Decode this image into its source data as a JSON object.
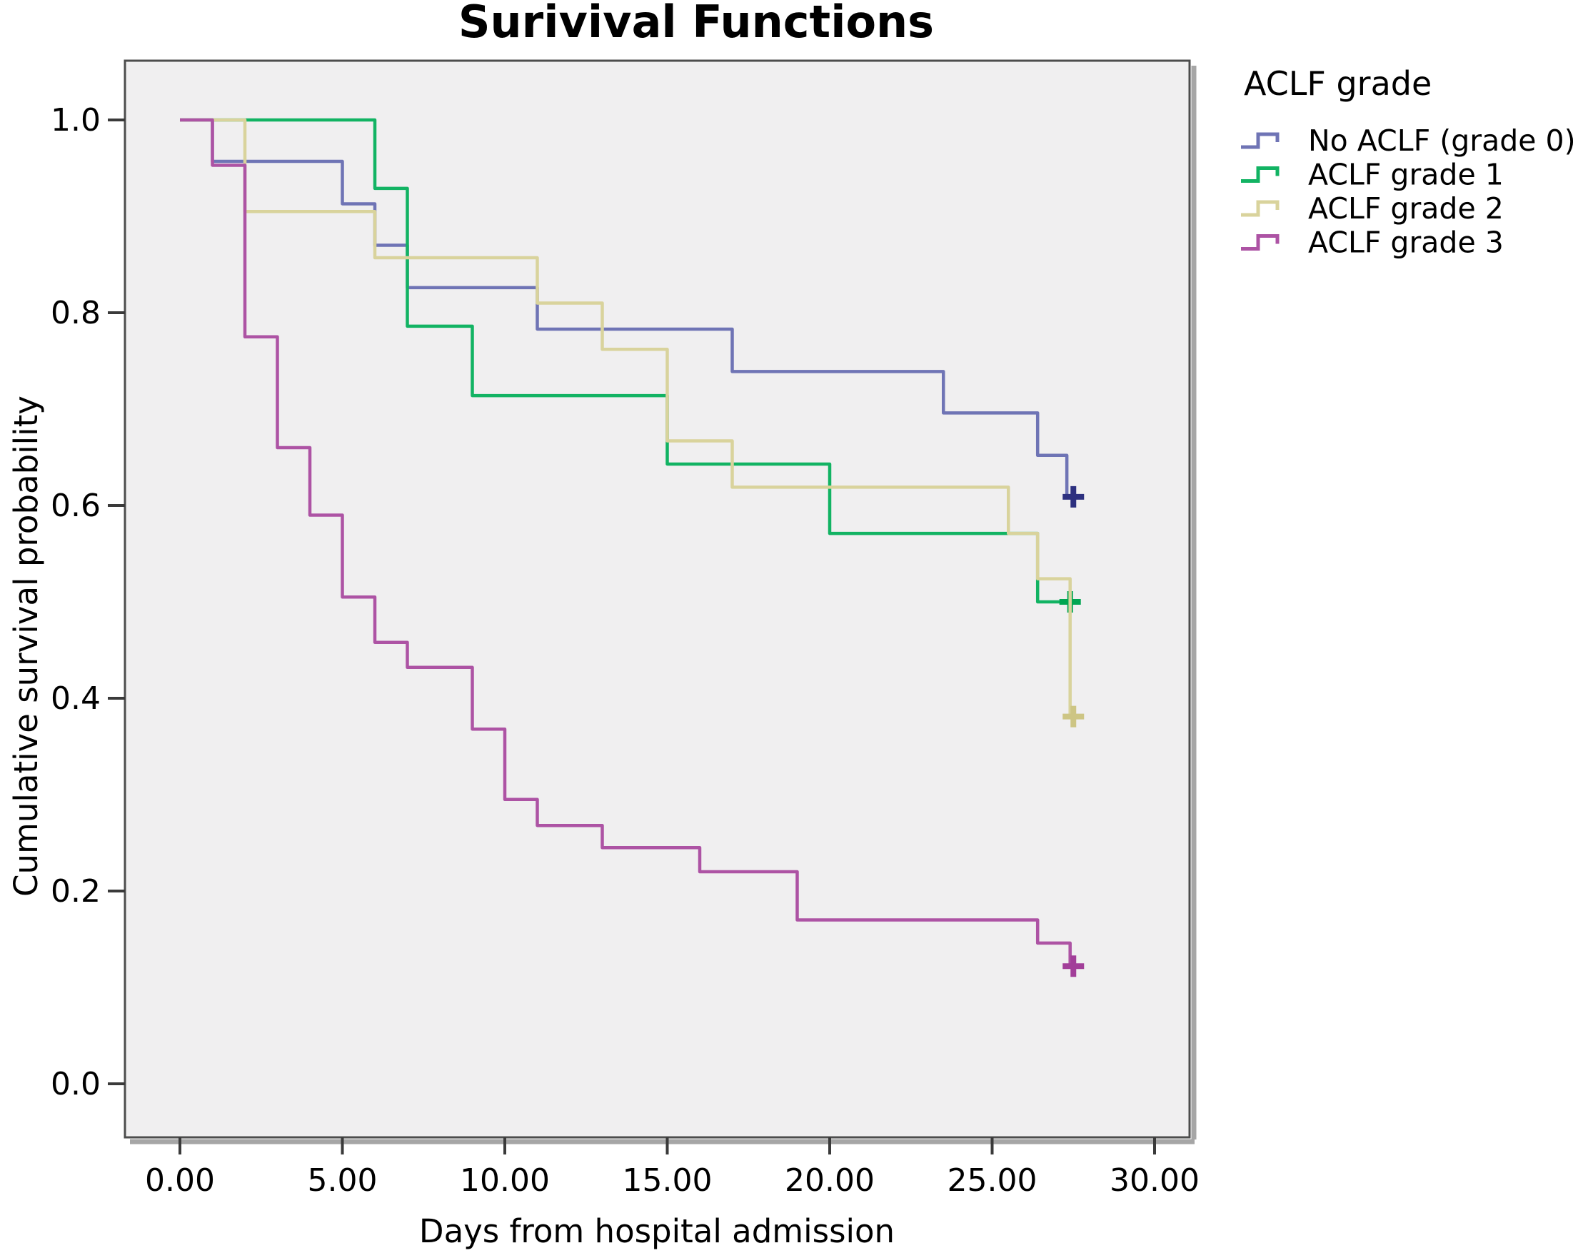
{
  "page": {
    "title": "Surivival Functions"
  },
  "chart_data": {
    "type": "line",
    "subtype": "kaplan-meier-step-plot",
    "title": "Surivival Functions",
    "xlabel": "Days from hospital admission",
    "ylabel": "Cumulative survival probability",
    "grid": false,
    "plot_background": "#f0eff0",
    "xlim": [
      -1.7,
      31.1
    ],
    "ylim": [
      -0.056,
      1.063
    ],
    "x_ticks": {
      "values": [
        0,
        5,
        10,
        15,
        20,
        25,
        30
      ],
      "labels": [
        "0.00",
        "5.00",
        "10.00",
        "15.00",
        "20.00",
        "25.00",
        "30.00"
      ]
    },
    "y_ticks": {
      "values": [
        0.0,
        0.2,
        0.4,
        0.6,
        0.8,
        1.0
      ],
      "labels": [
        "0.0",
        "0.2",
        "0.4",
        "0.6",
        "0.8",
        "1.0"
      ]
    },
    "legend": {
      "title": "ACLF grade",
      "position": "outside-top-right"
    },
    "series": [
      {
        "name": "No ACLF (grade 0)",
        "color": "#6f74b5",
        "censor_color": "#2d307f",
        "steps": [
          [
            0,
            1.0
          ],
          [
            1,
            0.957
          ],
          [
            5,
            0.913
          ],
          [
            6,
            0.87
          ],
          [
            7,
            0.826
          ],
          [
            11,
            0.783
          ],
          [
            17,
            0.739
          ],
          [
            23.5,
            0.696
          ],
          [
            26.4,
            0.652
          ],
          [
            27.3,
            0.609
          ]
        ],
        "censors": [
          [
            27.5,
            0.609
          ]
        ]
      },
      {
        "name": "ACLF grade 1",
        "color": "#12b363",
        "censor_color": "#00a551",
        "steps": [
          [
            0,
            1.0
          ],
          [
            6,
            0.929
          ],
          [
            7,
            0.786
          ],
          [
            9,
            0.714
          ],
          [
            15,
            0.643
          ],
          [
            20,
            0.571
          ],
          [
            26.4,
            0.5
          ]
        ],
        "censors": [
          [
            27.4,
            0.5
          ]
        ]
      },
      {
        "name": "ACLF grade 2",
        "color": "#d9d39c",
        "censor_color": "#cdc584",
        "steps": [
          [
            0,
            1.0
          ],
          [
            2,
            0.905
          ],
          [
            6,
            0.857
          ],
          [
            11,
            0.81
          ],
          [
            13,
            0.762
          ],
          [
            15,
            0.667
          ],
          [
            17,
            0.619
          ],
          [
            25.5,
            0.571
          ],
          [
            26.4,
            0.524
          ],
          [
            27.4,
            0.381
          ]
        ],
        "censors": [
          [
            27.5,
            0.381
          ]
        ]
      },
      {
        "name": "ACLF grade 3",
        "color": "#ad53a4",
        "censor_color": "#a23e99",
        "steps": [
          [
            0,
            1.0
          ],
          [
            1,
            0.953
          ],
          [
            2,
            0.775
          ],
          [
            3,
            0.66
          ],
          [
            4,
            0.59
          ],
          [
            5,
            0.505
          ],
          [
            6,
            0.458
          ],
          [
            7,
            0.432
          ],
          [
            9,
            0.368
          ],
          [
            10,
            0.295
          ],
          [
            11,
            0.268
          ],
          [
            13,
            0.245
          ],
          [
            16,
            0.22
          ],
          [
            19,
            0.17
          ],
          [
            26.4,
            0.146
          ],
          [
            27.4,
            0.122
          ]
        ],
        "censors": [
          [
            27.5,
            0.122
          ]
        ]
      }
    ]
  }
}
